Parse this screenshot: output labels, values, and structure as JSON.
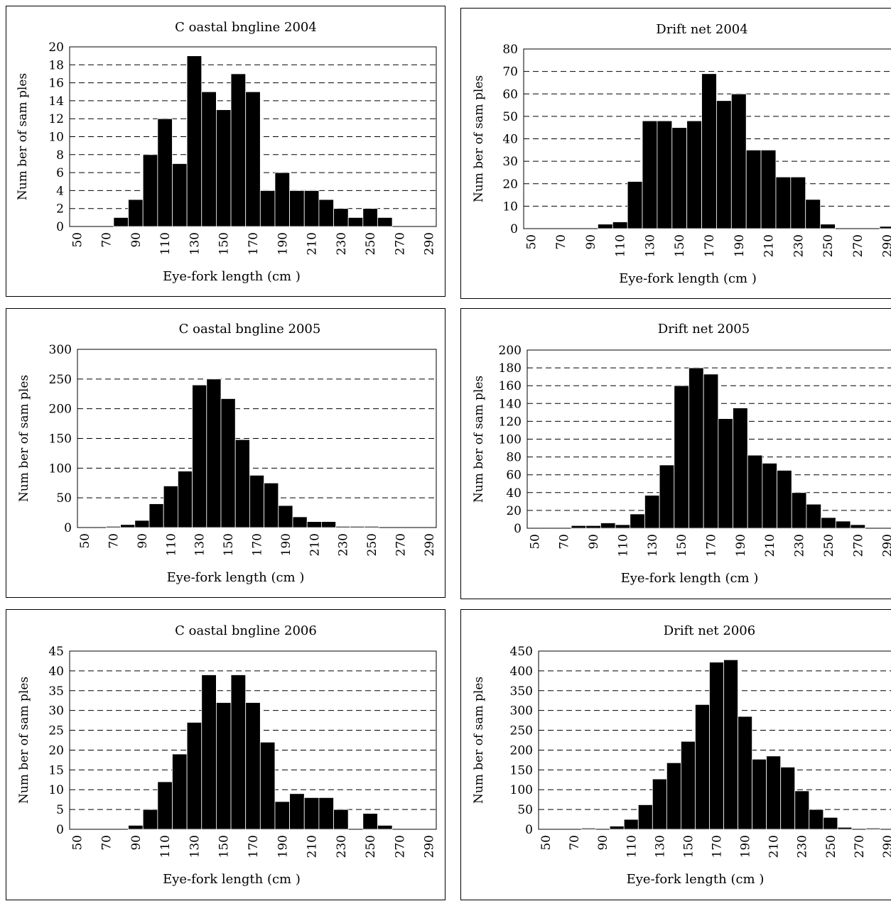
{
  "chart_data": [
    {
      "type": "bar",
      "title": "C oastal bngline 2004",
      "xlabel": "Eye-fork length (cm )",
      "ylabel": "Num ber of sam ples",
      "xticks": [
        "50",
        "70",
        "90",
        "110",
        "130",
        "150",
        "170",
        "190",
        "210",
        "230",
        "250",
        "270",
        "290"
      ],
      "yticks": [
        "0",
        "2",
        "4",
        "6",
        "8",
        "10",
        "12",
        "14",
        "16",
        "18",
        "20"
      ],
      "ylim": [
        0,
        20
      ],
      "bins": [
        50,
        60,
        70,
        80,
        90,
        100,
        110,
        120,
        130,
        140,
        150,
        160,
        170,
        180,
        190,
        200,
        210,
        220,
        230,
        240,
        250,
        260,
        270,
        280,
        290,
        300
      ],
      "values": [
        0,
        0,
        0,
        1,
        3,
        8,
        12,
        7,
        19,
        15,
        13,
        17,
        15,
        4,
        6,
        4,
        4,
        3,
        2,
        1,
        2,
        1,
        0,
        0,
        0,
        0
      ],
      "grid": "horizontal-dashed"
    },
    {
      "type": "bar",
      "title": "Drift net 2004",
      "xlabel": "Eye-fork length (cm )",
      "ylabel": "Num ber of sam ples",
      "xticks": [
        "50",
        "70",
        "90",
        "110",
        "130",
        "150",
        "170",
        "190",
        "210",
        "230",
        "250",
        "270",
        "290"
      ],
      "yticks": [
        "0",
        "10",
        "20",
        "30",
        "40",
        "50",
        "60",
        "70",
        "80"
      ],
      "ylim": [
        0,
        80
      ],
      "bins": [
        50,
        60,
        70,
        80,
        90,
        100,
        110,
        120,
        130,
        140,
        150,
        160,
        170,
        180,
        190,
        200,
        210,
        220,
        230,
        240,
        250,
        260,
        270,
        280,
        290,
        300
      ],
      "values": [
        0,
        0,
        0,
        0,
        0,
        2,
        3,
        21,
        48,
        48,
        45,
        48,
        69,
        57,
        60,
        35,
        35,
        23,
        23,
        13,
        2,
        0,
        0,
        0,
        1,
        0
      ],
      "grid": "horizontal-dashed"
    },
    {
      "type": "bar",
      "title": "C oastal bngline 2005",
      "xlabel": "Eye-fork length (cm )",
      "ylabel": "Num ber of sam ples",
      "xticks": [
        "50",
        "70",
        "90",
        "110",
        "130",
        "150",
        "170",
        "190",
        "210",
        "230",
        "250",
        "270",
        "290"
      ],
      "yticks": [
        "0",
        "50",
        "100",
        "150",
        "200",
        "250",
        "300"
      ],
      "ylim": [
        0,
        300
      ],
      "bins": [
        50,
        60,
        70,
        80,
        90,
        100,
        110,
        120,
        130,
        140,
        150,
        160,
        170,
        180,
        190,
        200,
        210,
        220,
        230,
        240,
        250,
        260,
        270,
        280,
        290,
        300
      ],
      "values": [
        0,
        0,
        2,
        5,
        12,
        40,
        70,
        95,
        240,
        250,
        217,
        148,
        88,
        75,
        37,
        18,
        10,
        10,
        2,
        2,
        2,
        0,
        0,
        0,
        0,
        0
      ],
      "grid": "horizontal-dashed"
    },
    {
      "type": "bar",
      "title": "Drift net 2005",
      "xlabel": "Eye-fork length (cm )",
      "ylabel": "Num ber of sam ples",
      "xticks": [
        "50",
        "70",
        "90",
        "110",
        "130",
        "150",
        "170",
        "190",
        "210",
        "230",
        "250",
        "270",
        "290"
      ],
      "yticks": [
        "0",
        "20",
        "40",
        "60",
        "80",
        "100",
        "120",
        "140",
        "160",
        "180",
        "200"
      ],
      "ylim": [
        0,
        200
      ],
      "bins": [
        50,
        60,
        70,
        80,
        90,
        100,
        110,
        120,
        130,
        140,
        150,
        160,
        170,
        180,
        190,
        200,
        210,
        220,
        230,
        240,
        250,
        260,
        270,
        280,
        290,
        300
      ],
      "values": [
        0,
        0,
        0,
        3,
        3,
        6,
        4,
        16,
        37,
        71,
        160,
        180,
        173,
        123,
        135,
        82,
        73,
        65,
        40,
        27,
        12,
        8,
        4,
        0,
        0,
        0
      ],
      "grid": "horizontal-dashed"
    },
    {
      "type": "bar",
      "title": "C oastal bngline 2006",
      "xlabel": "Eye-fork length (cm )",
      "ylabel": "Num ber of sam ples",
      "xticks": [
        "50",
        "70",
        "90",
        "110",
        "130",
        "150",
        "170",
        "190",
        "210",
        "230",
        "250",
        "270",
        "290"
      ],
      "yticks": [
        "0",
        "5",
        "10",
        "15",
        "20",
        "25",
        "30",
        "35",
        "40",
        "45"
      ],
      "ylim": [
        0,
        45
      ],
      "bins": [
        50,
        60,
        70,
        80,
        90,
        100,
        110,
        120,
        130,
        140,
        150,
        160,
        170,
        180,
        190,
        200,
        210,
        220,
        230,
        240,
        250,
        260,
        270,
        280,
        290,
        300
      ],
      "values": [
        0,
        0,
        0,
        0,
        1,
        5,
        12,
        19,
        27,
        39,
        32,
        39,
        32,
        22,
        7,
        9,
        8,
        8,
        5,
        0,
        4,
        1,
        0,
        0,
        0,
        0
      ],
      "grid": "horizontal-dashed"
    },
    {
      "type": "bar",
      "title": "Drift net 2006",
      "xlabel": "Eye-fork length (cm )",
      "ylabel": "Num ber of sam ples",
      "xticks": [
        "50",
        "70",
        "90",
        "110",
        "130",
        "150",
        "170",
        "190",
        "210",
        "230",
        "250",
        "270",
        "290"
      ],
      "yticks": [
        "0",
        "50",
        "100",
        "150",
        "200",
        "250",
        "300",
        "350",
        "400",
        "450"
      ],
      "ylim": [
        0,
        450
      ],
      "bins": [
        50,
        60,
        70,
        80,
        90,
        100,
        110,
        120,
        130,
        140,
        150,
        160,
        170,
        180,
        190,
        200,
        210,
        220,
        230,
        240,
        250,
        260,
        270,
        280,
        290,
        300
      ],
      "values": [
        0,
        0,
        0,
        3,
        0,
        8,
        25,
        62,
        127,
        168,
        222,
        315,
        422,
        428,
        285,
        177,
        185,
        157,
        97,
        50,
        30,
        5,
        0,
        3,
        0,
        0
      ],
      "grid": "horizontal-dashed"
    }
  ]
}
